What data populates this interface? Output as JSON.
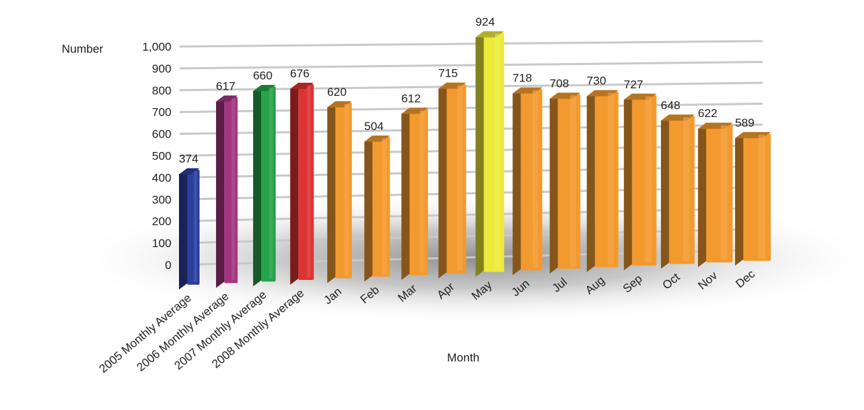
{
  "chart_data": {
    "type": "bar",
    "title": "",
    "ylabel": "Number",
    "xlabel": "Month",
    "ylim": [
      0,
      1000
    ],
    "yticks": [
      "0",
      "100",
      "200",
      "300",
      "400",
      "500",
      "600",
      "700",
      "800",
      "900",
      "1,000"
    ],
    "grid": true,
    "legend": "none",
    "categories": [
      "2005 Monthly Average",
      "2006 Monthly Average",
      "2007 Monthly Average",
      "2008 Monthly Average",
      "Jan",
      "Feb",
      "Mar",
      "Apr",
      "May",
      "Jun",
      "Jul",
      "Aug",
      "Sep",
      "Oct",
      "Nov",
      "Dec"
    ],
    "values": [
      374,
      617,
      660,
      676,
      620,
      504,
      612,
      715,
      924,
      718,
      708,
      730,
      727,
      648,
      622,
      589
    ],
    "data_labels": [
      "374",
      "617",
      "660",
      "676",
      "620",
      "504",
      "612",
      "715",
      "924",
      "718",
      "708",
      "730",
      "727",
      "648",
      "622",
      "589"
    ],
    "colors": [
      "#2b3f9e",
      "#a3357f",
      "#27a349",
      "#dd3333",
      "#f39a2e",
      "#f39a2e",
      "#f39a2e",
      "#f39a2e",
      "#ecea3a",
      "#f39a2e",
      "#f39a2e",
      "#f39a2e",
      "#f39a2e",
      "#f39a2e",
      "#f39a2e",
      "#f39a2e"
    ]
  }
}
